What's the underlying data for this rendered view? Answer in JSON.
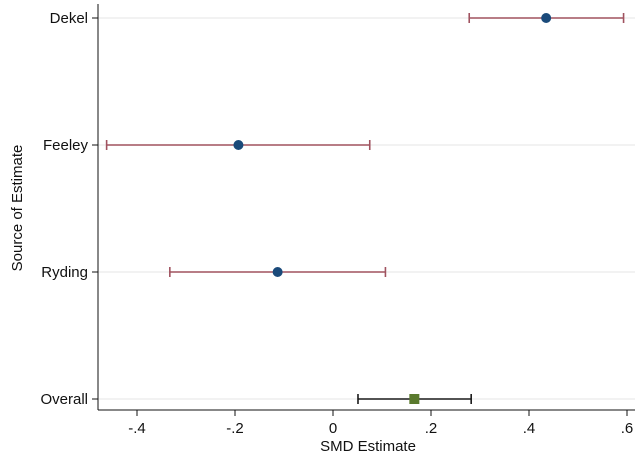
{
  "chart_data": {
    "type": "scatter",
    "subtype": "forest-plot",
    "title": "",
    "xlabel": "SMD Estimate",
    "ylabel": "Source of Estimate",
    "xlim": [
      -0.48,
      0.6
    ],
    "x_ticks": [
      -0.4,
      -0.2,
      0,
      0.2,
      0.4,
      0.6
    ],
    "x_tick_labels": [
      "-.4",
      "-.2",
      "0",
      ".2",
      ".4",
      ".6"
    ],
    "grid": "horizontal",
    "legend": "none",
    "categories": [
      "Dekel",
      "Feeley",
      "Ryding",
      "Overall"
    ],
    "estimates": [
      {
        "source": "Dekel",
        "estimate": 0.435,
        "ci_low": 0.278,
        "ci_high": 0.593,
        "marker": "circle",
        "color": "#1a4a7a",
        "ci_color": "#a0525f"
      },
      {
        "source": "Feeley",
        "estimate": -0.193,
        "ci_low": -0.462,
        "ci_high": 0.075,
        "marker": "circle",
        "color": "#1a4a7a",
        "ci_color": "#a0525f"
      },
      {
        "source": "Ryding",
        "estimate": -0.113,
        "ci_low": -0.333,
        "ci_high": 0.107,
        "marker": "circle",
        "color": "#1a4a7a",
        "ci_color": "#a0525f"
      },
      {
        "source": "Overall",
        "estimate": 0.166,
        "ci_low": 0.051,
        "ci_high": 0.282,
        "marker": "square",
        "color": "#5a7a2e",
        "ci_color": "#1a1a1a"
      }
    ]
  }
}
